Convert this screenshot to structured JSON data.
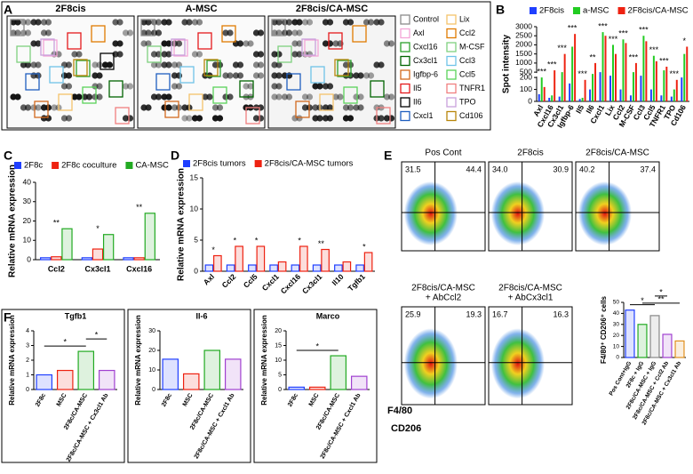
{
  "panel_labels": [
    "A",
    "B",
    "C",
    "D",
    "E",
    "F"
  ],
  "array_blot": {
    "titles": [
      "2F8cis",
      "A-MSC",
      "2F8cis/CA-MSC"
    ],
    "legend": [
      {
        "name": "Control",
        "color": "#8c8c8c"
      },
      {
        "name": "Axl",
        "color": "#f4a6d7"
      },
      {
        "name": "Cxcl16",
        "color": "#2ca02c"
      },
      {
        "name": "Cx3cl1",
        "color": "#006400"
      },
      {
        "name": "Igfbp-6",
        "color": "#d2691e"
      },
      {
        "name": "Il5",
        "color": "#e41a1c"
      },
      {
        "name": "Il6",
        "color": "#000000"
      },
      {
        "name": "Cxcl1",
        "color": "#1f5fbf"
      },
      {
        "name": "Lix",
        "color": "#f5c26b"
      },
      {
        "name": "Ccl2",
        "color": "#e07b00"
      },
      {
        "name": "M-CSF",
        "color": "#7fd17f"
      },
      {
        "name": "Ccl3",
        "color": "#6fc3e8"
      },
      {
        "name": "Ccl5",
        "color": "#5ad35a"
      },
      {
        "name": "TNFR1",
        "color": "#f08080"
      },
      {
        "name": "TPO",
        "color": "#c9a0dc"
      },
      {
        "name": "Cd106",
        "color": "#b8860b"
      }
    ]
  },
  "flow": {
    "plots": [
      {
        "title": [
          "Pos Cont"
        ],
        "q_left": "31.5",
        "q_right": "44.4"
      },
      {
        "title": [
          "2F8cis"
        ],
        "q_left": "34.0",
        "q_right": "30.9"
      },
      {
        "title": [
          "2F8cis/CA-MSC"
        ],
        "q_left": "40.2",
        "q_right": "37.4"
      },
      {
        "title": [
          "2F8cis/CA-MSC",
          "+ AbCcl2"
        ],
        "q_left": "25.9",
        "q_right": "19.3"
      },
      {
        "title": [
          "2F8cis/CA-MSC",
          "+ AbCx3cl1"
        ],
        "q_left": "16.7",
        "q_right": "16.3"
      }
    ],
    "y_label": "F4/80",
    "x_label": "CD206"
  },
  "chart_data": [
    {
      "type": "bar",
      "y_label": "Spot intensity",
      "bar_style": "filled",
      "categories": [
        "Axl",
        "Cxcl16",
        "Cx3cl1",
        "Igfbp-6",
        "Il5",
        "Il6",
        "Cxcl1",
        "Lix",
        "Ccl2",
        "M-CSF",
        "Ccl3",
        "Ccl5",
        "TNFR1",
        "TPO",
        "Cd106"
      ],
      "series": [
        {
          "name": "2F8cis",
          "color": "#1f3fff",
          "values": [
            60,
            30,
            40,
            150,
            20,
            100,
            500,
            300,
            100,
            50,
            300,
            100,
            50,
            40,
            200
          ]
        },
        {
          "name": "a-MSC",
          "color": "#22cc22",
          "values": [
            200,
            50,
            500,
            1900,
            30,
            400,
            2700,
            2000,
            2300,
            500,
            2500,
            1400,
            600,
            100,
            1500
          ]
        },
        {
          "name": "2F8cis/CA-MSC",
          "color": "#ee2211",
          "values": [
            120,
            600,
            1500,
            2600,
            180,
            1000,
            2500,
            1500,
            2100,
            1000,
            2200,
            1100,
            800,
            180,
            1900
          ]
        }
      ],
      "ylim": [
        0,
        3000
      ],
      "ybreak": [
        200,
        500
      ],
      "yticks": [
        0,
        100,
        200,
        500,
        1000,
        1500,
        2000,
        2500,
        3000
      ],
      "significance": [
        "***",
        "***",
        "***",
        "***",
        "***",
        "**",
        "***",
        "***",
        "***",
        "***",
        "***",
        "***",
        "***",
        "***",
        "*"
      ]
    },
    {
      "type": "bar",
      "y_label": "Relative mRNA expression",
      "bar_style": "outline",
      "categories": [
        "Ccl2",
        "Cx3cl1",
        "Cxcl16"
      ],
      "series": [
        {
          "name": "2F8c",
          "color": "#1f3fff",
          "values": [
            1,
            1,
            1
          ]
        },
        {
          "name": "2F8c coculture",
          "color": "#ee2211",
          "values": [
            1.5,
            5.5,
            1
          ]
        },
        {
          "name": "CA-MSC",
          "color": "#22aa22",
          "values": [
            16,
            13,
            24
          ]
        }
      ],
      "ylim": [
        0,
        40
      ],
      "yticks": [
        0,
        10,
        20,
        30,
        40
      ],
      "significance": [
        "**",
        "*",
        "**"
      ]
    },
    {
      "type": "bar",
      "y_label": "Relative mRNA expression",
      "bar_style": "outline",
      "categories": [
        "Axl",
        "Ccl2",
        "Ccl5",
        "Cxcl1",
        "Cxcl16",
        "Cx3cl1",
        "Il10",
        "Tgfb1"
      ],
      "series": [
        {
          "name": "2F8cis tumors",
          "color": "#1f3fff",
          "values": [
            1,
            1,
            1,
            1,
            1,
            1,
            1,
            1
          ]
        },
        {
          "name": "2F8cis/CA-MSC tumors",
          "color": "#ee2211",
          "values": [
            2.5,
            4,
            4,
            1.5,
            4,
            3.5,
            1.5,
            3
          ]
        }
      ],
      "ylim": [
        0,
        15
      ],
      "yticks": [
        0,
        5,
        10,
        15
      ],
      "significance": [
        "*",
        "*",
        "*",
        null,
        "*",
        "**",
        null,
        "*"
      ]
    },
    {
      "type": "bar",
      "y_label": "F4/80⁺ CD206⁺ cells",
      "bar_style": "outline",
      "categories": [
        "Pos Cont+IgG",
        "2F8c + IgG",
        "2F8c/CA-MSC + IgG",
        "2F8c/CA-MSC + Ccl2 Ab",
        "2F8c/CA-MSC + Cx3cl1 Ab"
      ],
      "values": [
        43,
        30,
        38,
        21,
        15
      ],
      "colors": [
        "#1f3fff",
        "#22aa22",
        "#888888",
        "#a040d0",
        "#e09020"
      ],
      "ylim": [
        0,
        50
      ],
      "yticks": [
        0,
        10,
        20,
        30,
        40,
        50
      ],
      "annotations": [
        "*",
        "**",
        "*"
      ]
    },
    {
      "type": "bar",
      "title": "Tgfb1",
      "y_label": "Relative mRNA expression",
      "bar_style": "outline",
      "categories": [
        "2F8c",
        "MSC",
        "2F8c/CA-MSC",
        "2F8c/CA-MSC + Cx3cl1 Ab"
      ],
      "values": [
        1,
        1.3,
        2.6,
        1.3
      ],
      "colors": [
        "#1f3fff",
        "#ee2211",
        "#22aa22",
        "#a040d0"
      ],
      "ylim": [
        0,
        4
      ],
      "yticks": [
        0,
        1,
        2,
        3,
        4
      ],
      "annotations": [
        "*",
        "*"
      ]
    },
    {
      "type": "bar",
      "title": "Il-6",
      "y_label": "Relative mRNA expression",
      "bar_style": "outline",
      "categories": [
        "2F8c",
        "MSC",
        "2F8c/CA-MSC",
        "2F8c/CA-MSC + Cxcl1 Ab"
      ],
      "values": [
        15.5,
        8,
        20,
        15.5
      ],
      "colors": [
        "#1f3fff",
        "#ee2211",
        "#22aa22",
        "#a040d0"
      ],
      "ylim": [
        0,
        30
      ],
      "yticks": [
        0,
        10,
        20,
        30
      ]
    },
    {
      "type": "bar",
      "title": "Marco",
      "y_label": "Relative mRNA expression",
      "bar_style": "outline",
      "categories": [
        "2F8c",
        "MSC",
        "2F8c/CA-MSC",
        "2F8c/CA-MSC + Cxcl1 Ab"
      ],
      "values": [
        0.8,
        0.8,
        11.5,
        4.5
      ],
      "colors": [
        "#1f3fff",
        "#ee2211",
        "#22aa22",
        "#a040d0"
      ],
      "ylim": [
        0,
        20
      ],
      "yticks": [
        0,
        5,
        10,
        15,
        20
      ],
      "annotations": [
        "*"
      ]
    }
  ]
}
